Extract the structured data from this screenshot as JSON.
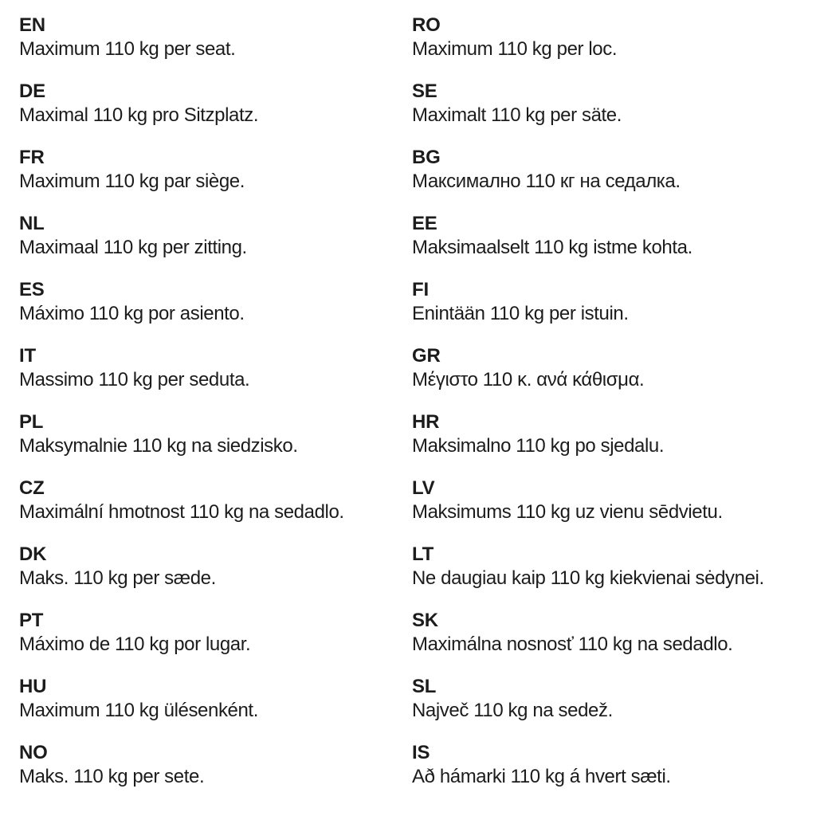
{
  "page": {
    "background_color": "#ffffff",
    "text_color": "#1c1c1c",
    "description": "Multilingual seat weight limit notice"
  },
  "columns": [
    {
      "entries": [
        {
          "code": "EN",
          "text": "Maximum 110 kg per seat."
        },
        {
          "code": "DE",
          "text": "Maximal 110 kg pro Sitzplatz."
        },
        {
          "code": "FR",
          "text": "Maximum 110 kg par siège."
        },
        {
          "code": "NL",
          "text": "Maximaal 110 kg per zitting."
        },
        {
          "code": "ES",
          "text": "Máximo 110 kg por asiento."
        },
        {
          "code": "IT",
          "text": "Massimo 110 kg per seduta."
        },
        {
          "code": "PL",
          "text": "Maksymalnie 110 kg na siedzisko."
        },
        {
          "code": "CZ",
          "text": "Maximální hmotnost 110 kg na sedadlo."
        },
        {
          "code": "DK",
          "text": "Maks. 110 kg per sæde."
        },
        {
          "code": "PT",
          "text": "Máximo de 110 kg por lugar."
        },
        {
          "code": "HU",
          "text": "Maximum 110 kg ülésenként."
        },
        {
          "code": "NO",
          "text": "Maks. 110 kg per sete."
        }
      ]
    },
    {
      "entries": [
        {
          "code": "RO",
          "text": "Maximum 110 kg per loc."
        },
        {
          "code": "SE",
          "text": "Maximalt 110 kg per säte."
        },
        {
          "code": "BG",
          "text": "Максимално 110 кг на седалка."
        },
        {
          "code": "EE",
          "text": "Maksimaalselt 110 kg istme kohta."
        },
        {
          "code": "FI",
          "text": "Enintään 110 kg per istuin."
        },
        {
          "code": "GR",
          "text": "Μέγιστο 110 κ. ανά κάθισμα."
        },
        {
          "code": "HR",
          "text": "Maksimalno 110 kg po sjedalu."
        },
        {
          "code": "LV",
          "text": "Maksimums 110 kg uz vienu sēdvietu."
        },
        {
          "code": "LT",
          "text": "Ne daugiau kaip 110 kg kiekvienai sėdynei."
        },
        {
          "code": "SK",
          "text": "Maximálna nosnosť 110 kg na sedadlo."
        },
        {
          "code": "SL",
          "text": "Največ 110 kg na sedež."
        },
        {
          "code": "IS",
          "text": "Að hámarki 110 kg á hvert sæti."
        }
      ]
    }
  ]
}
